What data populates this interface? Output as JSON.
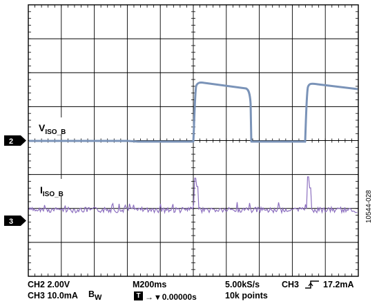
{
  "traces": {
    "ch2": {
      "label_main": "V",
      "label_sub": "ISO_B",
      "marker": "2",
      "color": "#7a93b8"
    },
    "ch3": {
      "label_main": "I",
      "label_sub": "ISO_B",
      "marker": "3",
      "color": "#8c6fbf"
    }
  },
  "readouts": {
    "row1_left": "CH2  2.00V",
    "row1_mid": "M200ms",
    "row1_rate": "5.00kS/s",
    "row1_trig_ch": "CH3",
    "row1_trig_level": "17.2mA",
    "row2_left": "CH3  10.0mA",
    "row2_bw_main": "B",
    "row2_bw_sub": "W",
    "row2_trig_time": "→ ▾ 0.00000s",
    "row2_points": "10k points",
    "trigger_icon_text": "T"
  },
  "figure_id": "10544-028",
  "colors": {
    "grid": "#000000",
    "marker_fill": "#000000",
    "marker_text": "#ffffff"
  }
}
